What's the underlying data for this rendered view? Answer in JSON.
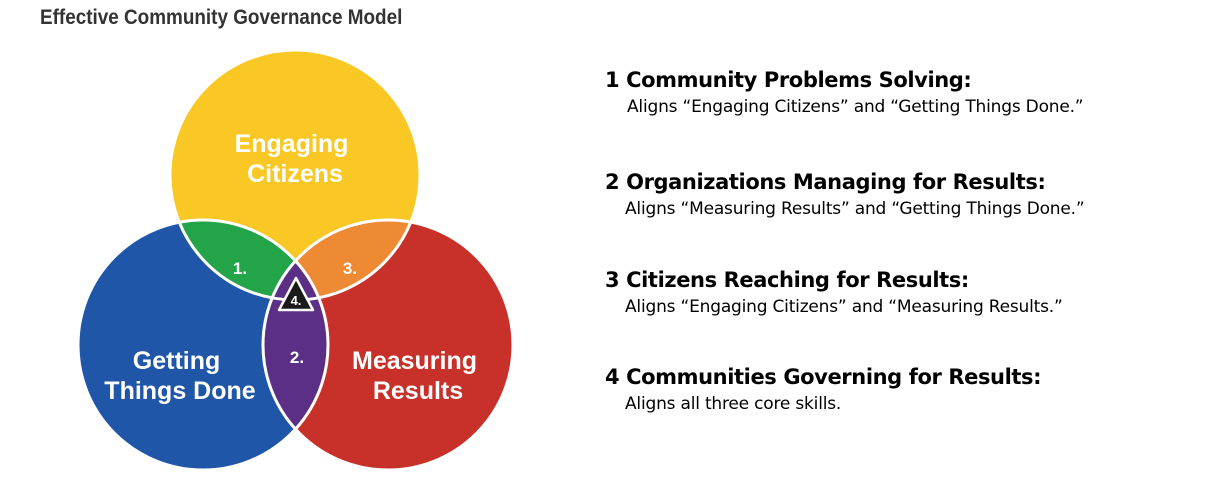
{
  "title": "Effective Community Governance Model",
  "venn": {
    "circles": [
      {
        "id": "top",
        "lines": [
          "Engaging",
          "Citizens"
        ],
        "color": "#F9C824"
      },
      {
        "id": "left",
        "lines": [
          "Getting",
          "Things Done"
        ],
        "color": "#1F56A7"
      },
      {
        "id": "right",
        "lines": [
          "Measuring",
          "Results"
        ],
        "color": "#C8302A"
      }
    ],
    "intersections": [
      {
        "id": "top-left",
        "label": "1.",
        "color": "#24A448"
      },
      {
        "id": "left-right",
        "label": "2.",
        "color": "#5B2F86"
      },
      {
        "id": "top-right",
        "label": "3.",
        "color": "#EE8A34"
      },
      {
        "id": "center",
        "label": "4.",
        "color": "#1A1A1A"
      }
    ]
  },
  "items": [
    {
      "heading": "1 Community Problems Solving:",
      "description": "Aligns “Engaging Citizens” and “Getting Things Done.”"
    },
    {
      "heading": "2 Organizations Managing for Results:",
      "description": "Aligns “Measuring Results” and “Getting Things Done.”"
    },
    {
      "heading": "3 Citizens Reaching for Results:",
      "description": "Aligns “Engaging Citizens” and “Measuring Results.”"
    },
    {
      "heading": "4 Communities Governing for Results:",
      "description": "Aligns all three core skills."
    }
  ]
}
